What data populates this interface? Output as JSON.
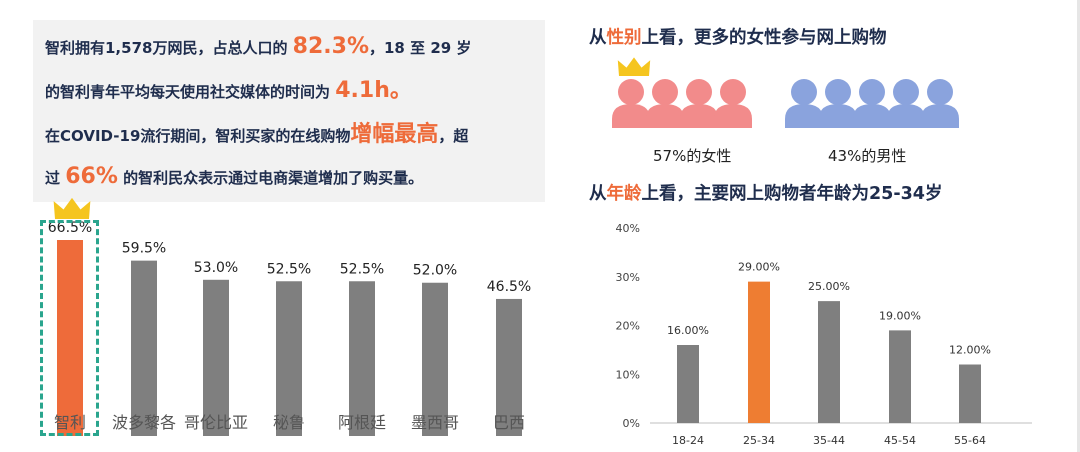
{
  "info": {
    "line1_a": "智利拥有1,578万网民，占总人口的 ",
    "line1_big": "82.3%",
    "line1_b": "，18 至 29 岁",
    "line2_a": "的智利青年平均每天使用社交媒体的时间为 ",
    "line2_big": "4.1h。",
    "line3_a": "在COVID-19流行期间，智利买家的在线购物",
    "line3_big": "增幅最高",
    "line3_b": "，超",
    "line4_a": "过 ",
    "line4_big": "66%",
    "line4_b": " 的智利民众表示通过电商渠道增加了购买量。"
  },
  "gender": {
    "heading_pre": "从",
    "heading_hl": "性别",
    "heading_post": "上看，更多的女性参与网上购物",
    "female_label": "57%的女性",
    "male_label": "43%的男性",
    "colors": {
      "female": "#f28b8b",
      "male": "#8aa3dd",
      "crown": "#f5c51f"
    }
  },
  "age_heading": {
    "pre": "从",
    "hl": "年龄",
    "post": "上看，主要网上购物者年龄为25-34岁"
  },
  "chart_data": [
    {
      "type": "bar",
      "categories": [
        "智利",
        "波多黎各",
        "哥伦比亚",
        "秘鲁",
        "阿根廷",
        "墨西哥",
        "巴西"
      ],
      "values": [
        66.5,
        59.5,
        53.0,
        52.5,
        52.5,
        52.0,
        46.5
      ],
      "data_labels": [
        "66.5%",
        "59.5%",
        "53.0%",
        "52.5%",
        "52.5%",
        "52.0%",
        "46.5%"
      ],
      "highlight_index": 0,
      "colors": {
        "default": "#7f7f7f",
        "highlight": "#ee6b3a"
      }
    },
    {
      "type": "bar",
      "categories": [
        "18-24",
        "25-34",
        "35-44",
        "45-54",
        "55-64"
      ],
      "values": [
        16.0,
        29.0,
        25.0,
        19.0,
        12.0
      ],
      "data_labels": [
        "16.00%",
        "29.00%",
        "25.00%",
        "19.00%",
        "12.00%"
      ],
      "yticks": [
        "0%",
        "10%",
        "20%",
        "30%",
        "40%"
      ],
      "ylim": [
        0,
        40
      ],
      "highlight_index": 1,
      "colors": {
        "default": "#7f7f7f",
        "highlight": "#ee7d32"
      }
    }
  ]
}
